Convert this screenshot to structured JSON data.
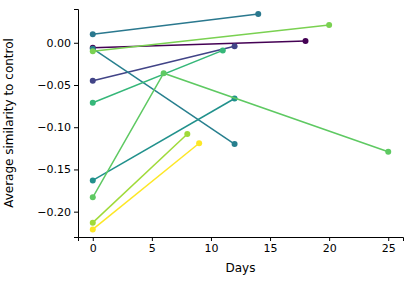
{
  "chart_data": {
    "type": "line",
    "x_label": "Days",
    "y_label": "Average similarity to control",
    "marker": "circle",
    "line_style": "solid",
    "xlim": [
      -1.25,
      26.25
    ],
    "ylim": [
      -0.23,
      0.04
    ],
    "xticks": [
      0,
      5,
      10,
      15,
      20,
      25
    ],
    "yticks": [
      {
        "value": -0.2,
        "label": "−0.20"
      },
      {
        "value": -0.15,
        "label": "−0.15"
      },
      {
        "value": -0.1,
        "label": "−0.10"
      },
      {
        "value": -0.05,
        "label": "−0.05"
      },
      {
        "value": 0,
        "label": "0.00"
      }
    ],
    "series": [
      {
        "color": "#440154",
        "x": [
          0,
          18
        ],
        "values": [
          -0.006,
          0.002
        ]
      },
      {
        "color": "#414487",
        "x": [
          0,
          12
        ],
        "values": [
          -0.045,
          -0.004
        ]
      },
      {
        "color": "#2a788e",
        "x": [
          0,
          14
        ],
        "values": [
          0.01,
          0.034
        ]
      },
      {
        "color": "#277f8e",
        "x": [
          0,
          12
        ],
        "values": [
          -0.007,
          -0.12
        ]
      },
      {
        "color": "#21918c",
        "x": [
          0,
          12
        ],
        "values": [
          -0.163,
          -0.066
        ]
      },
      {
        "color": "#35b779",
        "x": [
          0,
          11
        ],
        "values": [
          -0.071,
          -0.009
        ]
      },
      {
        "color": "#5ec962",
        "x": [
          0,
          6,
          25
        ],
        "values": [
          -0.183,
          -0.036,
          -0.129
        ]
      },
      {
        "color": "#7ad151",
        "x": [
          0,
          20
        ],
        "values": [
          -0.01,
          0.021
        ]
      },
      {
        "color": "#a0da39",
        "x": [
          0,
          8
        ],
        "values": [
          -0.213,
          -0.108
        ]
      },
      {
        "color": "#fde725",
        "x": [
          0,
          9
        ],
        "values": [
          -0.221,
          -0.119
        ]
      }
    ]
  }
}
